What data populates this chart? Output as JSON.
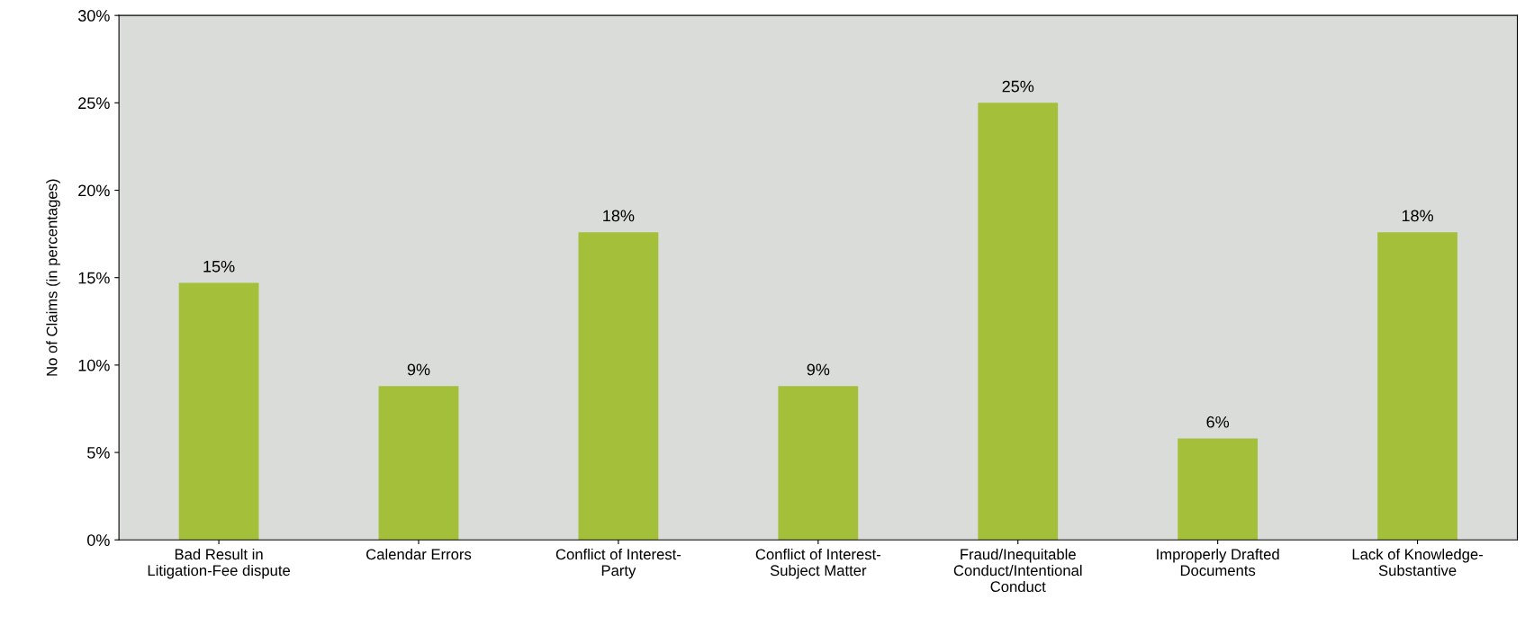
{
  "chart_data": {
    "type": "bar",
    "ylabel": "No of Claims (in percentages)",
    "categories": [
      "Bad Result in\nLitigation-Fee dispute",
      "Calendar Errors",
      "Conflict of Interest-\nParty",
      "Conflict of Interest-\nSubject Matter",
      "Fraud/Inequitable\nConduct/Intentional\nConduct",
      "Improperly Drafted\nDocuments",
      "Lack of Knowledge-\nSubstantive"
    ],
    "values": [
      14.7,
      8.8,
      17.6,
      8.8,
      25.0,
      5.8,
      17.6
    ],
    "value_labels": [
      "15%",
      "9%",
      "18%",
      "9%",
      "25%",
      "6%",
      "18%"
    ],
    "color": "#a4bf3a",
    "ylim": [
      0,
      30
    ],
    "yticks": [
      {
        "value": 0,
        "label": "0%"
      },
      {
        "value": 5,
        "label": "5%"
      },
      {
        "value": 10,
        "label": "10%"
      },
      {
        "value": 15,
        "label": "15%"
      },
      {
        "value": 20,
        "label": "20%"
      },
      {
        "value": 25,
        "label": "25%"
      },
      {
        "value": 30,
        "label": "30%"
      }
    ],
    "grid": false,
    "legend": false
  }
}
